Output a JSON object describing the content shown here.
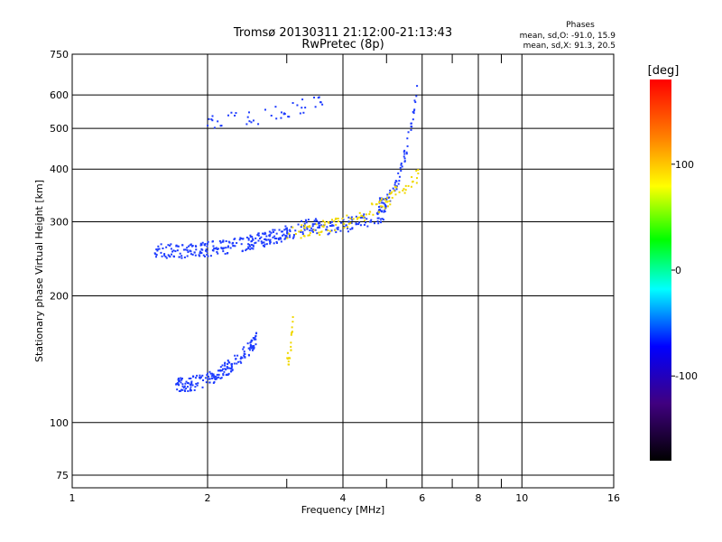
{
  "header": {
    "title_line1": "Tromsø 20130311 21:12:00-21:13:43",
    "title_line2": "RwPretec (8p)"
  },
  "stats": {
    "heading": "Phases",
    "line1": "mean, sd,O: -91.0, 15.9",
    "line2": "mean, sd,X:  91.3, 20.5"
  },
  "chart_data": {
    "type": "scatter",
    "xlabel": "Frequency [MHz]",
    "ylabel": "Stationary phase Virtual Height [km]",
    "x_scale": "log",
    "y_scale": "log",
    "xlim": [
      1,
      16
    ],
    "ylim": [
      70,
      750
    ],
    "x_ticks": [
      1,
      2,
      4,
      6,
      8,
      10,
      16
    ],
    "x_tick_labels": [
      "1",
      "2",
      "4",
      "6",
      "8",
      "10",
      "16"
    ],
    "x_minor_ticks": [
      3,
      5,
      7,
      9
    ],
    "y_ticks": [
      75,
      100,
      200,
      300,
      400,
      500,
      600,
      750
    ],
    "y_tick_labels": [
      "75",
      "100",
      "200",
      "300",
      "400",
      "500",
      "600",
      "750"
    ],
    "grid": true,
    "colorbar": {
      "label": "[deg]",
      "range": [
        -180,
        180
      ],
      "ticks": [
        100,
        0,
        -100
      ],
      "tick_labels": [
        "100",
        "0",
        "-100"
      ]
    },
    "series": [
      {
        "color": "#1e3cff",
        "traces": [
          {
            "f_range": [
              1.52,
              3.55
            ],
            "h_range": [
              255,
              300
            ],
            "n": 280
          },
          {
            "f_range": [
              3.4,
              5.0
            ],
            "h_range": [
              290,
              315
            ],
            "n": 90
          },
          {
            "f_range": [
              4.8,
              5.85
            ],
            "h_range": [
              330,
              620
            ],
            "n": 80
          },
          {
            "f_range": [
              1.7,
              2.6
            ],
            "h_range": [
              123,
              160
            ],
            "n": 190
          },
          {
            "f_range": [
              1.9,
              3.6
            ],
            "h_range": [
              520,
              585
            ],
            "n": 45
          }
        ]
      },
      {
        "color": "#f0d800",
        "traces": [
          {
            "f_range": [
              3.0,
              5.9
            ],
            "h_range": [
              285,
              390
            ],
            "n": 110
          },
          {
            "f_range": [
              3.0,
              3.1
            ],
            "h_range": [
              140,
              175
            ],
            "n": 20
          }
        ]
      }
    ]
  }
}
